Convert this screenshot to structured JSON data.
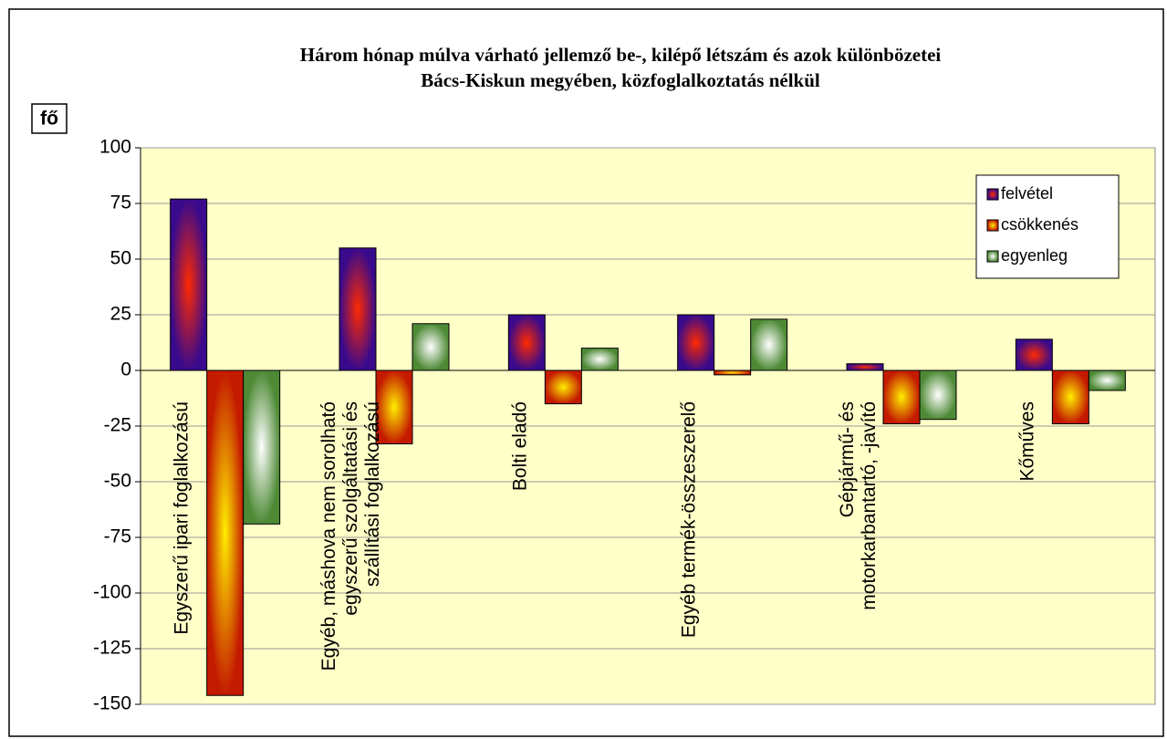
{
  "chart_data": {
    "type": "bar",
    "title": "Három hónap múlva várható jellemző be-, kilépő létszám és azok különbözetei",
    "subtitle": "Bács-Kiskun megyében, közfoglalkoztatás nélkül",
    "y_label": "fő",
    "categories": [
      "Egyszerű ipari foglalkozású",
      "Egyéb, máshova nem sorolható\negyszerű szolgáltatási és\nszállítási foglalkozású",
      "Bolti eladó",
      "Egyéb termék-összeszerelő",
      "Gépjármű- és\nmotorkarbantartó, -javító",
      "Kőműves"
    ],
    "series": [
      {
        "name": "felvétel",
        "color": "#3a0a8c",
        "values": [
          77,
          55,
          25,
          25,
          3,
          14
        ]
      },
      {
        "name": "csökkenés",
        "color": "#c41a00",
        "values": [
          -146,
          -33,
          -15,
          -2,
          -24,
          -24
        ]
      },
      {
        "name": "egyenleg",
        "color": "#4e8a36",
        "values": [
          -69,
          21,
          10,
          23,
          -22,
          -9
        ]
      }
    ],
    "ylim": [
      -150,
      100
    ],
    "yticks": [
      -150,
      -125,
      -100,
      -75,
      -50,
      -25,
      0,
      25,
      50,
      75,
      100
    ],
    "grid": true,
    "legend": "upper right"
  }
}
